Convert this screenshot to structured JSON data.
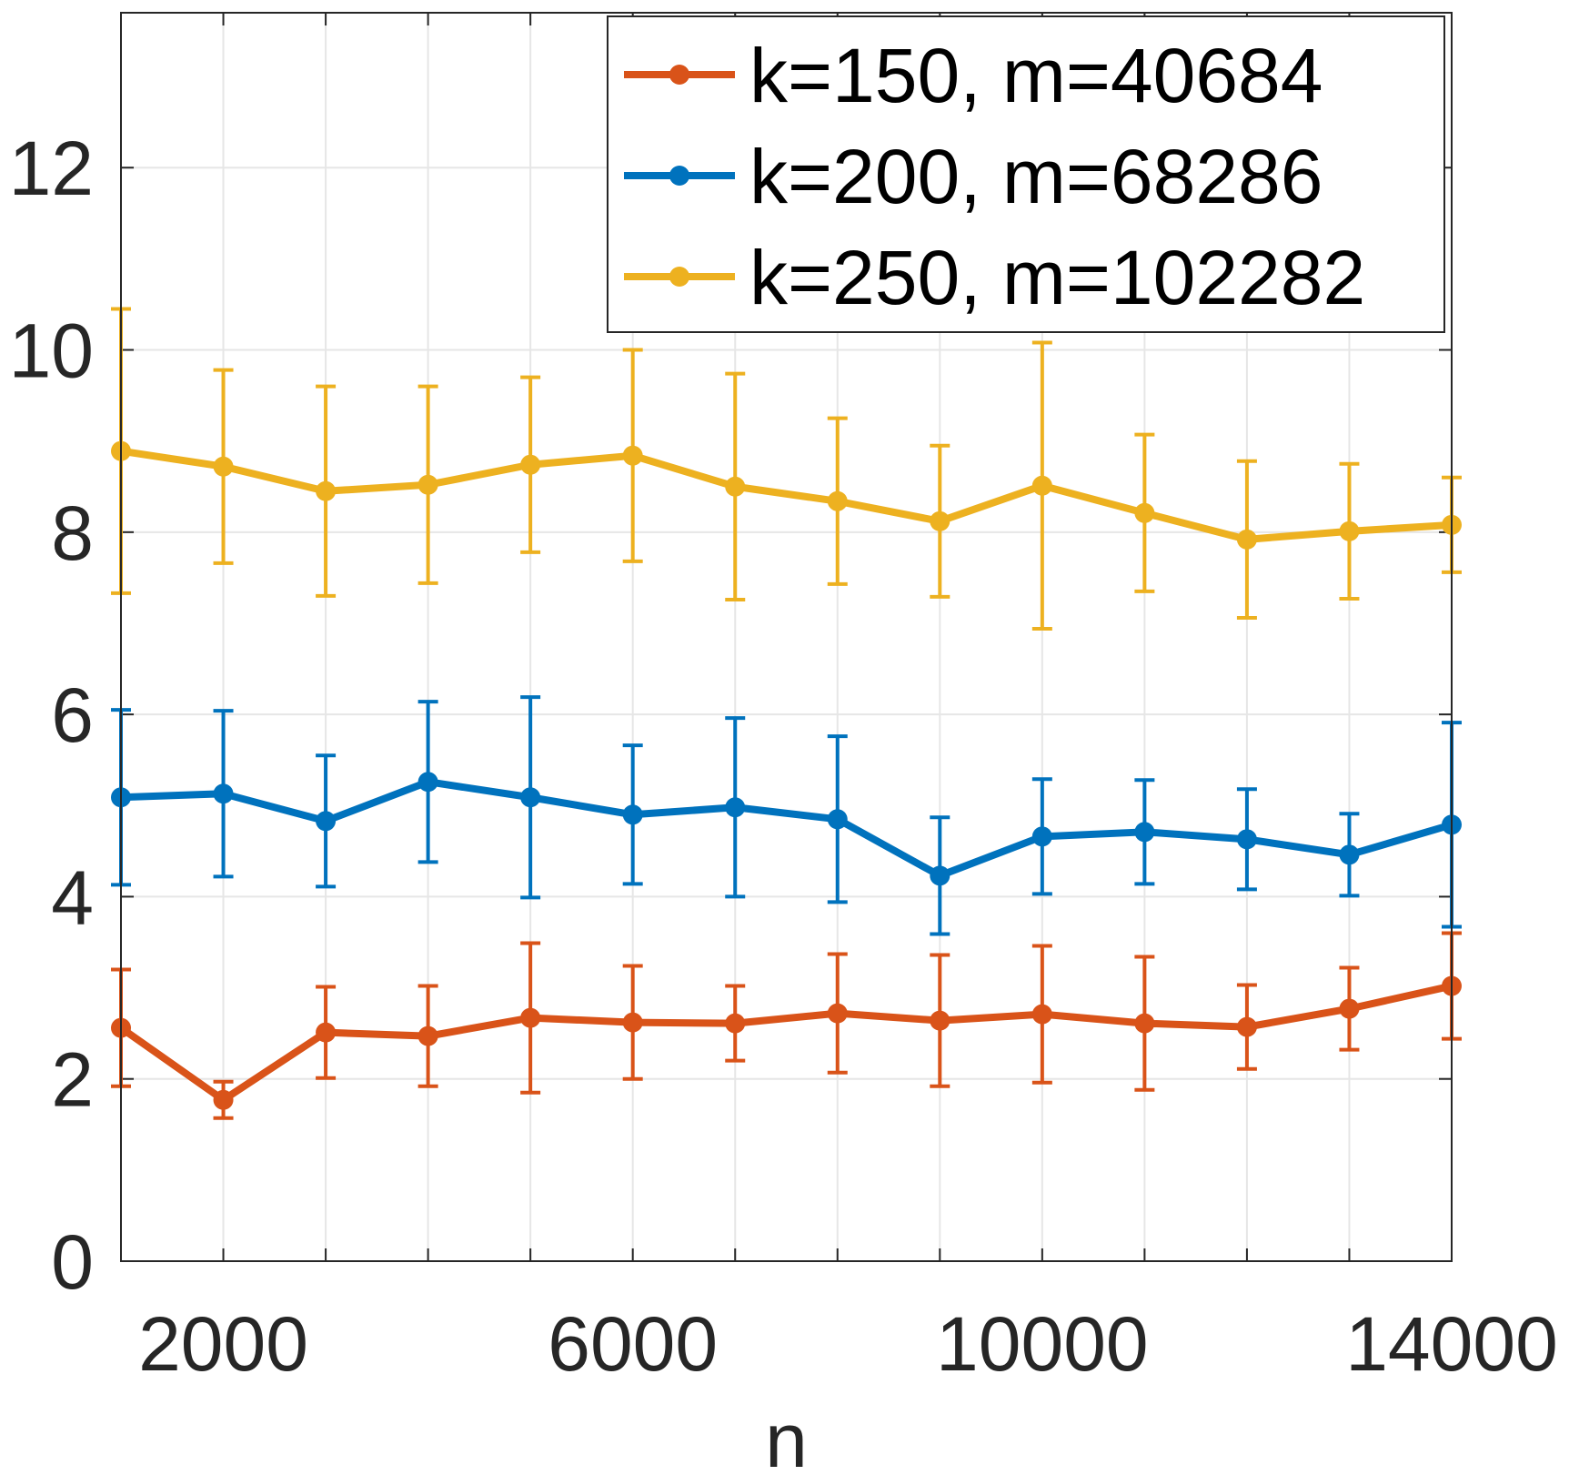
{
  "chart_data": {
    "type": "line",
    "xlabel": "n",
    "ylabel": "",
    "xlim": [
      1000,
      14000
    ],
    "ylim": [
      0,
      13.7
    ],
    "xticks": [
      2000,
      6000,
      10000,
      14000
    ],
    "xtick_labels": [
      "2000",
      "6000",
      "10000",
      "14000"
    ],
    "yticks": [
      0,
      2,
      4,
      6,
      8,
      10,
      12
    ],
    "ytick_labels": [
      "0",
      "2",
      "4",
      "6",
      "8",
      "10",
      "12"
    ],
    "grid": true,
    "legend_position": "top-right",
    "x": [
      1000,
      2000,
      3000,
      4000,
      5000,
      6000,
      7000,
      8000,
      9000,
      10000,
      11000,
      12000,
      13000,
      14000
    ],
    "series": [
      {
        "name": "k=150, m=40684",
        "color": "#D95319",
        "values": [
          2.56,
          1.77,
          2.51,
          2.47,
          2.67,
          2.62,
          2.61,
          2.72,
          2.64,
          2.71,
          2.61,
          2.57,
          2.77,
          3.02
        ],
        "errors": [
          0.64,
          0.2,
          0.5,
          0.55,
          0.82,
          0.62,
          0.41,
          0.65,
          0.72,
          0.75,
          0.73,
          0.46,
          0.45,
          0.58
        ]
      },
      {
        "name": "k=200, m=68286",
        "color": "#0072BD",
        "values": [
          5.09,
          5.13,
          4.83,
          5.26,
          5.09,
          4.9,
          4.98,
          4.85,
          4.23,
          4.66,
          4.71,
          4.63,
          4.46,
          4.79
        ],
        "errors": [
          0.96,
          0.91,
          0.72,
          0.88,
          1.1,
          0.76,
          0.98,
          0.91,
          0.64,
          0.63,
          0.57,
          0.55,
          0.45,
          1.12
        ]
      },
      {
        "name": "k=250, m=102282",
        "color": "#EDB120",
        "values": [
          8.89,
          8.72,
          8.45,
          8.52,
          8.74,
          8.84,
          8.5,
          8.34,
          8.12,
          8.51,
          8.21,
          7.92,
          8.01,
          8.08
        ],
        "errors": [
          1.56,
          1.06,
          1.15,
          1.08,
          0.96,
          1.16,
          1.24,
          0.91,
          0.83,
          1.57,
          0.86,
          0.86,
          0.74,
          0.52
        ]
      }
    ]
  }
}
